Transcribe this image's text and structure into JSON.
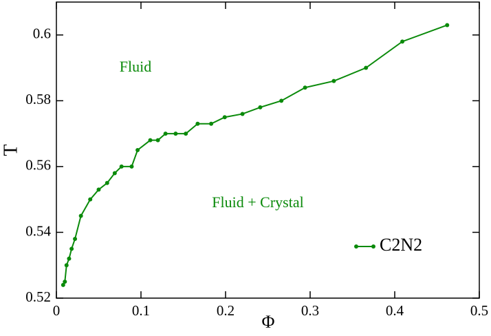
{
  "chart_data": {
    "type": "line",
    "xlabel": "Φ",
    "ylabel": "T",
    "annotations": [
      "Fluid",
      "Fluid + Crystal"
    ],
    "x": [
      0.008,
      0.01,
      0.012,
      0.015,
      0.018,
      0.022,
      0.029,
      0.04,
      0.05,
      0.06,
      0.069,
      0.077,
      0.089,
      0.096,
      0.111,
      0.12,
      0.129,
      0.141,
      0.153,
      0.167,
      0.183,
      0.199,
      0.22,
      0.241,
      0.266,
      0.294,
      0.328,
      0.366,
      0.409,
      0.462
    ],
    "series": [
      {
        "name": "C2N2",
        "color": "#0a8a0a",
        "values": [
          0.524,
          0.525,
          0.53,
          0.532,
          0.535,
          0.538,
          0.545,
          0.55,
          0.553,
          0.555,
          0.558,
          0.56,
          0.56,
          0.565,
          0.568,
          0.568,
          0.57,
          0.57,
          0.57,
          0.573,
          0.573,
          0.575,
          0.576,
          0.578,
          0.58,
          0.584,
          0.586,
          0.59,
          0.598,
          0.603
        ]
      }
    ],
    "xlim": [
      0,
      0.5
    ],
    "xticks": [
      0,
      0.1,
      0.2,
      0.3,
      0.4,
      0.5
    ],
    "ylim": [
      0.52,
      0.61
    ],
    "yticks": [
      0.52,
      0.54,
      0.56,
      0.58,
      0.6
    ],
    "legend": "lower right"
  }
}
